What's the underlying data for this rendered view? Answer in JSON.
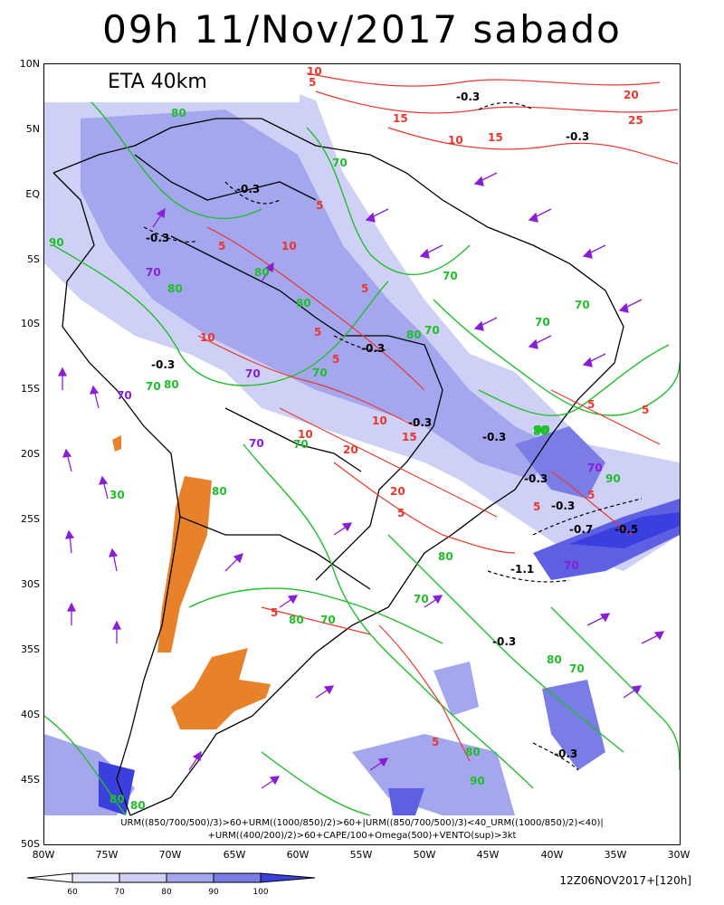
{
  "header": {
    "title": "09h 11/Nov/2017 sabado"
  },
  "model": {
    "label": "ETA 40km"
  },
  "axes": {
    "lat_labels": [
      "10N",
      "5N",
      "EQ",
      "5S",
      "10S",
      "15S",
      "20S",
      "25S",
      "30S",
      "35S",
      "40S",
      "45S",
      "50S"
    ],
    "lon_labels": [
      "80W",
      "75W",
      "70W",
      "65W",
      "60W",
      "55W",
      "50W",
      "45W",
      "40W",
      "35W",
      "30W"
    ]
  },
  "caption": {
    "line1": "URM((850/700/500)/3)>60+URM((1000/850)/2)>60+|URM((850/700/500)/3)<40_URM((1000/850)/2)<40)|",
    "line2": "+URM((400/200)/2)>60+CAPE/100+Omega(500)+VENTO(sup)>3kt"
  },
  "legend": {
    "values": [
      "60",
      "70",
      "80",
      "90",
      "100"
    ]
  },
  "footer": {
    "run": "12Z06NOV2017+[120h]"
  },
  "map_labels": {
    "green": [
      "80",
      "70",
      "80",
      "80",
      "90",
      "70",
      "80",
      "70",
      "80",
      "70",
      "70",
      "70",
      "90",
      "80",
      "70",
      "70",
      "80",
      "80",
      "90",
      "70",
      "80",
      "80",
      "70",
      "80",
      "70",
      "90",
      "80",
      "30",
      "80",
      "90",
      "80"
    ],
    "red": [
      "10",
      "5",
      "15",
      "10",
      "15",
      "20",
      "25",
      "5",
      "5",
      "10",
      "5",
      "10",
      "5",
      "5",
      "10",
      "15",
      "20",
      "20",
      "10",
      "5",
      "5",
      "5",
      "5",
      "5",
      "5",
      "5"
    ],
    "black": [
      "-0.3",
      "-0.3",
      "-0.3",
      "-0.3",
      "-0.3",
      "-0.3",
      "-0.3",
      "-0.3",
      "-0.3",
      "-0.3",
      "-0.7",
      "-0.5",
      "-1.1",
      "-0.3",
      "-0.3"
    ],
    "purple": [
      "70",
      "70",
      "70",
      "70",
      "70",
      "70"
    ]
  },
  "colors": {
    "shade_light": "#cfd0f5",
    "shade_mid": "#a5a7ee",
    "shade_dark": "#7b7de6",
    "shade_darkest": "#3c3fe0",
    "cape_orange": "#e8822a",
    "green_contour": "#1fbf2a",
    "red_contour": "#e8382e",
    "purple_arrow": "#8a1ed6"
  }
}
